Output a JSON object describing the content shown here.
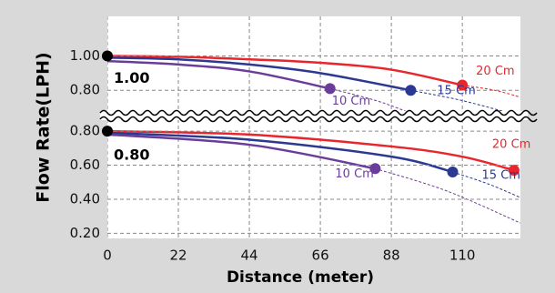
{
  "chart_data": [
    {
      "type": "line",
      "ylabel": "Flow Rate(LPH)",
      "annotation": "1.00",
      "start_value": 1.0,
      "xlim": [
        0,
        128
      ],
      "ylim": [
        0.69,
        1.23
      ],
      "yticks": [
        {
          "value": 1.0,
          "label": "1.00"
        },
        {
          "value": 0.8,
          "label": "0.80"
        }
      ],
      "grid": true,
      "series": [
        {
          "name": "20 Cm",
          "color": "#e8262c",
          "x": [
            0,
            22,
            44,
            66,
            88,
            110
          ],
          "values": [
            1.0,
            0.995,
            0.98,
            0.96,
            0.92,
            0.83
          ],
          "ext_x": [
            110,
            120,
            128
          ],
          "ext_values": [
            0.83,
            0.8,
            0.76
          ]
        },
        {
          "name": "15 Cm",
          "color": "#2b3990",
          "x": [
            0,
            22,
            44,
            66,
            94
          ],
          "values": [
            0.99,
            0.98,
            0.95,
            0.9,
            0.8
          ],
          "ext_x": [
            94,
            110,
            128
          ],
          "ext_values": [
            0.8,
            0.74,
            0.65
          ]
        },
        {
          "name": "10 Cm",
          "color": "#6a3d9a",
          "x": [
            0,
            22,
            44,
            69
          ],
          "values": [
            0.97,
            0.95,
            0.91,
            0.81
          ],
          "ext_x": [
            69,
            85,
            100
          ],
          "ext_values": [
            0.81,
            0.73,
            0.62
          ]
        }
      ]
    },
    {
      "type": "line",
      "xlabel": "Distance (meter)",
      "annotation": "0.80",
      "start_value": 0.8,
      "xlim": [
        0,
        128
      ],
      "xticks": [
        0,
        22,
        44,
        66,
        88,
        110
      ],
      "ylim": [
        0.17,
        0.87
      ],
      "yticks": [
        {
          "value": 0.8,
          "label": "0.80"
        },
        {
          "value": 0.6,
          "label": "0.60"
        },
        {
          "value": 0.4,
          "label": "0.40"
        },
        {
          "value": 0.2,
          "label": "0.20"
        }
      ],
      "grid": true,
      "series": [
        {
          "name": "20 Cm",
          "color": "#e8262c",
          "x": [
            0,
            44,
            88,
            110,
            126
          ],
          "values": [
            0.8,
            0.78,
            0.71,
            0.65,
            0.57
          ],
          "ext_x": [],
          "ext_values": []
        },
        {
          "name": "15 Cm",
          "color": "#2b3990",
          "x": [
            0,
            44,
            88,
            107
          ],
          "values": [
            0.79,
            0.75,
            0.65,
            0.56
          ],
          "ext_x": [
            107,
            118,
            128
          ],
          "ext_values": [
            0.56,
            0.49,
            0.41
          ]
        },
        {
          "name": "10 Cm",
          "color": "#6a3d9a",
          "x": [
            0,
            44,
            83
          ],
          "values": [
            0.78,
            0.72,
            0.58
          ],
          "ext_x": [
            83,
            105,
            128
          ],
          "ext_values": [
            0.58,
            0.45,
            0.26
          ]
        }
      ]
    }
  ]
}
